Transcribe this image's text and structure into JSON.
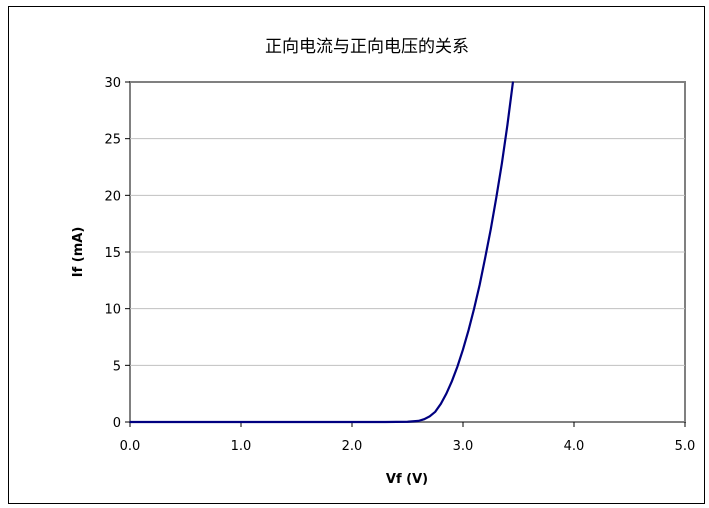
{
  "chart_data": {
    "type": "line",
    "title": "正向电流与正向电压的关系",
    "xlabel": "Vf (V)",
    "ylabel": "If (mA)",
    "xlim": [
      0,
      5
    ],
    "ylim": [
      0,
      30
    ],
    "x_ticks": [
      "0.0",
      "1.0",
      "2.0",
      "3.0",
      "4.0",
      "5.0"
    ],
    "y_ticks": [
      "0",
      "5",
      "10",
      "15",
      "20",
      "25",
      "30"
    ],
    "grid": "horizontal",
    "legend": "none",
    "series": [
      {
        "color": "#000080",
        "points": [
          [
            0.0,
            0.0
          ],
          [
            0.5,
            0.0
          ],
          [
            1.0,
            0.0
          ],
          [
            1.5,
            0.0
          ],
          [
            2.0,
            0.0
          ],
          [
            2.3,
            0.0
          ],
          [
            2.5,
            0.02
          ],
          [
            2.6,
            0.1
          ],
          [
            2.65,
            0.25
          ],
          [
            2.7,
            0.5
          ],
          [
            2.75,
            0.9
          ],
          [
            2.8,
            1.6
          ],
          [
            2.85,
            2.5
          ],
          [
            2.9,
            3.6
          ],
          [
            2.95,
            4.9
          ],
          [
            3.0,
            6.4
          ],
          [
            3.05,
            8.1
          ],
          [
            3.1,
            10.0
          ],
          [
            3.15,
            12.1
          ],
          [
            3.2,
            14.5
          ],
          [
            3.25,
            17.0
          ],
          [
            3.3,
            19.8
          ],
          [
            3.35,
            22.8
          ],
          [
            3.4,
            26.2
          ],
          [
            3.45,
            30.0
          ]
        ]
      }
    ]
  }
}
